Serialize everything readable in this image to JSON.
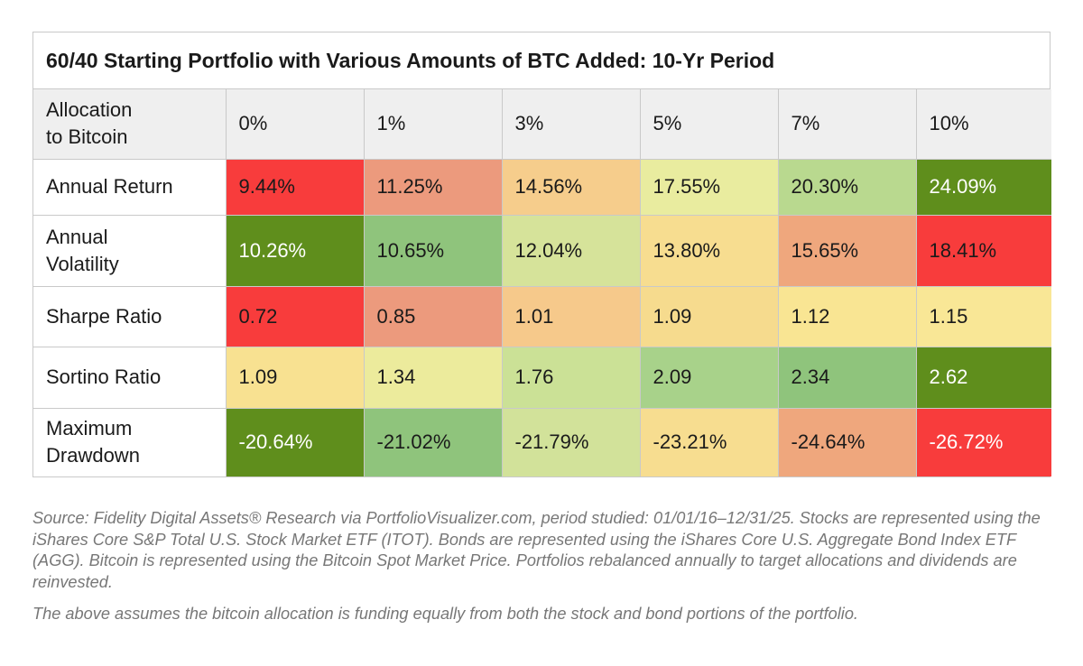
{
  "chart_data": {
    "type": "table",
    "title": "60/40 Starting Portfolio with Various Amounts of BTC Added: 10-Yr Period",
    "header_label": "Allocation\nto Bitcoin",
    "columns": [
      "0%",
      "1%",
      "3%",
      "5%",
      "7%",
      "10%"
    ],
    "rows": [
      {
        "label": "Annual Return",
        "values": [
          "9.44%",
          "11.25%",
          "14.56%",
          "17.55%",
          "20.30%",
          "24.09%"
        ],
        "colors": [
          "#f83c3c",
          "#ec9a7d",
          "#f6cd8c",
          "#e9ec9f",
          "#b9d98f",
          "#5f8e1c"
        ],
        "text_colors": [
          "#1a1a1a",
          "#1a1a1a",
          "#1a1a1a",
          "#1a1a1a",
          "#1a1a1a",
          "#ffffff"
        ]
      },
      {
        "label": "Annual\nVolatility",
        "values": [
          "10.26%",
          "10.65%",
          "12.04%",
          "13.80%",
          "15.65%",
          "18.41%"
        ],
        "colors": [
          "#5f8e1c",
          "#8fc47c",
          "#d6e39a",
          "#f7dd90",
          "#efa77d",
          "#f83c3c"
        ],
        "text_colors": [
          "#ffffff",
          "#1a1a1a",
          "#1a1a1a",
          "#1a1a1a",
          "#1a1a1a",
          "#1a1a1a"
        ]
      },
      {
        "label": "Sharpe Ratio",
        "values": [
          "0.72",
          "0.85",
          "1.01",
          "1.09",
          "1.12",
          "1.15"
        ],
        "colors": [
          "#f83c3c",
          "#ec9a7d",
          "#f6c98b",
          "#f6db8e",
          "#f9e593",
          "#f9e796"
        ],
        "text_colors": [
          "#1a1a1a",
          "#1a1a1a",
          "#1a1a1a",
          "#1a1a1a",
          "#1a1a1a",
          "#1a1a1a"
        ]
      },
      {
        "label": "Sortino Ratio",
        "values": [
          "1.09",
          "1.34",
          "1.76",
          "2.09",
          "2.34",
          "2.62"
        ],
        "colors": [
          "#f8e191",
          "#eceb9c",
          "#cbe196",
          "#a8d28a",
          "#8fc47c",
          "#5f8e1c"
        ],
        "text_colors": [
          "#1a1a1a",
          "#1a1a1a",
          "#1a1a1a",
          "#1a1a1a",
          "#1a1a1a",
          "#ffffff"
        ]
      },
      {
        "label": "Maximum\nDrawdown",
        "values": [
          "-20.64%",
          "-21.02%",
          "-21.79%",
          "-23.21%",
          "-24.64%",
          "-26.72%"
        ],
        "colors": [
          "#5f8e1c",
          "#8fc47c",
          "#d2e29a",
          "#f7dd90",
          "#efa77d",
          "#f83c3c"
        ],
        "text_colors": [
          "#ffffff",
          "#1a1a1a",
          "#1a1a1a",
          "#1a1a1a",
          "#1a1a1a",
          "#ffffff"
        ]
      }
    ]
  },
  "notes": {
    "source": "Source: Fidelity Digital Assets® Research via PortfolioVisualizer.com, period studied: 01/01/16–12/31/25. Stocks are represented using the iShares Core S&P Total U.S. Stock Market ETF (ITOT). Bonds are represented using the iShares Core U.S. Aggregate Bond Index ETF (AGG). Bitcoin is represented using the Bitcoin Spot Market Price. Portfolios rebalanced annually to target allocations and dividends are reinvested.",
    "assumption": "The above assumes the bitcoin allocation is funding equally from both the stock and bond portions of the portfolio."
  }
}
